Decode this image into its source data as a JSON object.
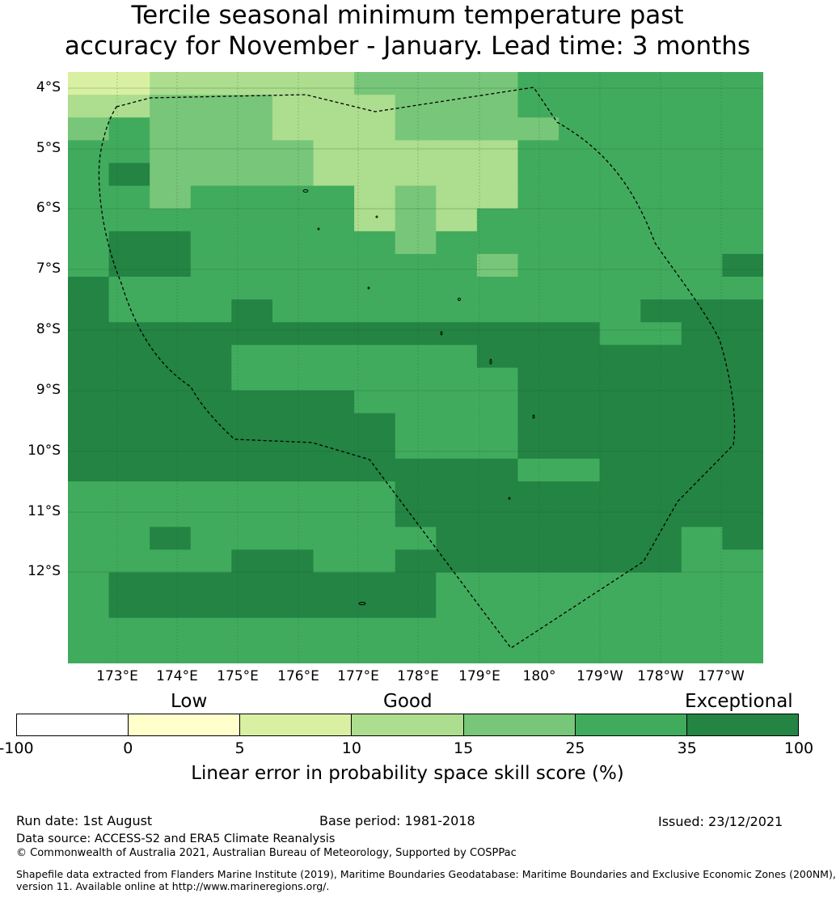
{
  "title": {
    "line1": "Tercile seasonal minimum temperature past",
    "line2": "accuracy for November - January. Lead time: 3 months"
  },
  "map": {
    "lat_labels": [
      "4°S",
      "5°S",
      "6°S",
      "7°S",
      "8°S",
      "9°S",
      "10°S",
      "11°S",
      "12°S"
    ],
    "lon_labels": [
      "173°E",
      "174°E",
      "175°E",
      "176°E",
      "177°E",
      "178°E",
      "179°E",
      "180°",
      "179°W",
      "178°W",
      "177°W"
    ],
    "grid_code_legend": {
      "2": "5-10",
      "3": "10-15",
      "4": "15-25",
      "5": "25-35",
      "6": "35-100"
    },
    "grid": [
      "22333334444555555",
      "33444333444555555",
      "45444333444455555",
      "55444433333555555",
      "56444433333555555",
      "55455553433555555",
      "55555553435555555",
      "56655555455555555",
      "56655555554555556",
      "65555555555555555",
      "65556555555555666",
      "66666666666665566",
      "66665555556666666",
      "66665555555666666",
      "66666665555666666",
      "66666666555666666",
      "66666666555666666",
      "66666666666556666",
      "55555555666666666",
      "55555555666666666",
      "55655555566666656",
      "55556655666666655",
      "56666666655555555",
      "56666666655555555",
      "55555555555555555",
      "55555555555555555"
    ],
    "grid_codes_map": {
      "legend": "Each character is a tercile skill class for a model grid cell"
    }
  },
  "legend": {
    "categories": [
      "Low",
      "Good",
      "Exceptional"
    ],
    "ticks": [
      "-100",
      "0",
      "5",
      "10",
      "15",
      "25",
      "35",
      "100"
    ],
    "colors": [
      "#ffffff",
      "#ffffcc",
      "#d9f0a3",
      "#addd8e",
      "#78c679",
      "#41ab5d",
      "#238443"
    ],
    "label": "Linear error in probability space skill score (%)"
  },
  "footer": {
    "run_date": "Run date: 1st August",
    "base_period": "Base period: 1981-2018",
    "issued": "Issued: 23/12/2021",
    "data_source": "Data source: ACCESS-S2 and ERA5 Climate Reanalysis",
    "copyright": "© Commonwealth of Australia 2021, Australian Bureau of Meteorology, Supported by COSPPac",
    "shapefile_line1": "Shapefile data extracted from Flanders Marine Institute (2019), Maritime Boundaries Geodatabase: Maritime Boundaries and Exclusive Economic Zones (200NM),",
    "shapefile_line2": "version 11. Available online at http://www.marineregions.org/."
  }
}
